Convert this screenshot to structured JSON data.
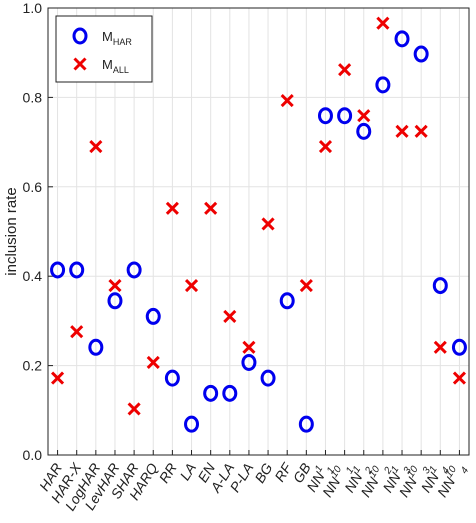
{
  "chart_data": {
    "type": "scatter",
    "ylabel": "inclusion rate",
    "ylim": [
      0,
      1
    ],
    "yticks": [
      "0.0",
      "0.2",
      "0.4",
      "0.6",
      "0.8",
      "1.0"
    ],
    "grid": true,
    "legend_position": "top-left",
    "categories": [
      {
        "base": "HAR",
        "sub": "",
        "sup": ""
      },
      {
        "base": "HAR-X",
        "sub": "",
        "sup": ""
      },
      {
        "base": "LogHAR",
        "sub": "",
        "sup": ""
      },
      {
        "base": "LevHAR",
        "sub": "",
        "sup": ""
      },
      {
        "base": "SHAR",
        "sub": "",
        "sup": ""
      },
      {
        "base": "HARQ",
        "sub": "",
        "sup": ""
      },
      {
        "base": "RR",
        "sub": "",
        "sup": ""
      },
      {
        "base": "LA",
        "sub": "",
        "sup": ""
      },
      {
        "base": "EN",
        "sub": "",
        "sup": ""
      },
      {
        "base": "A-LA",
        "sub": "",
        "sup": ""
      },
      {
        "base": "P-LA",
        "sub": "",
        "sup": ""
      },
      {
        "base": "BG",
        "sub": "",
        "sup": ""
      },
      {
        "base": "RF",
        "sub": "",
        "sup": ""
      },
      {
        "base": "GB",
        "sub": "",
        "sup": ""
      },
      {
        "base": "NN",
        "sub": "1",
        "sup": "1"
      },
      {
        "base": "NN",
        "sub": "1",
        "sup": "10"
      },
      {
        "base": "NN",
        "sub": "2",
        "sup": "1"
      },
      {
        "base": "NN",
        "sub": "2",
        "sup": "10"
      },
      {
        "base": "NN",
        "sub": "3",
        "sup": "1"
      },
      {
        "base": "NN",
        "sub": "3",
        "sup": "10"
      },
      {
        "base": "NN",
        "sub": "4",
        "sup": "1"
      },
      {
        "base": "NN",
        "sub": "4",
        "sup": "10"
      }
    ],
    "series": [
      {
        "name": "M",
        "name_sub": "HAR",
        "marker": "circle",
        "color": "#0000ee",
        "values": [
          0.414,
          0.414,
          0.241,
          0.345,
          0.414,
          0.31,
          0.172,
          0.069,
          0.138,
          0.138,
          0.207,
          0.172,
          0.345,
          0.069,
          0.759,
          0.759,
          0.724,
          0.828,
          0.931,
          0.897,
          0.379,
          0.241
        ]
      },
      {
        "name": "M",
        "name_sub": "ALL",
        "marker": "x",
        "color": "#ee0000",
        "values": [
          0.172,
          0.276,
          0.69,
          0.379,
          0.103,
          0.207,
          0.552,
          0.379,
          0.552,
          0.31,
          0.241,
          0.517,
          0.793,
          0.379,
          0.69,
          0.862,
          0.759,
          0.966,
          0.724,
          0.724,
          0.241,
          0.172
        ]
      }
    ]
  }
}
